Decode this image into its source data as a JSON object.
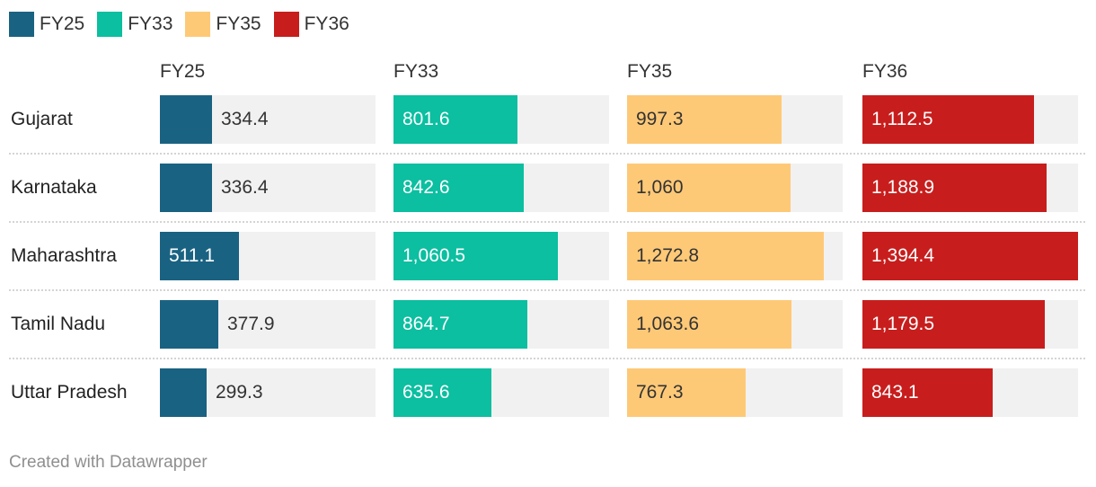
{
  "chart_data": {
    "type": "bar",
    "categories": [
      "Gujarat",
      "Karnataka",
      "Maharashtra",
      "Tamil Nadu",
      "Uttar Pradesh"
    ],
    "series": [
      {
        "name": "FY25",
        "color": "#1a6282",
        "values": [
          334.4,
          336.4,
          511.1,
          377.9,
          299.3
        ],
        "labels": [
          "334.4",
          "336.4",
          "511.1",
          "377.9",
          "299.3"
        ]
      },
      {
        "name": "FY33",
        "color": "#0bbfa0",
        "values": [
          801.6,
          842.6,
          1060.5,
          864.7,
          635.6
        ],
        "labels": [
          "801.6",
          "842.6",
          "1,060.5",
          "864.7",
          "635.6"
        ]
      },
      {
        "name": "FY35",
        "color": "#fec977",
        "values": [
          997.3,
          1060,
          1272.8,
          1063.6,
          767.3
        ],
        "labels": [
          "997.3",
          "1,060",
          "1,272.8",
          "1,063.6",
          "767.3"
        ]
      },
      {
        "name": "FY36",
        "color": "#c71e1d",
        "values": [
          1112.5,
          1188.9,
          1394.4,
          1179.5,
          843.1
        ],
        "labels": [
          "1,112.5",
          "1,188.9",
          "1,394.4",
          "1,179.5",
          "843.1"
        ]
      }
    ],
    "xlim": [
      0,
      1394.4
    ],
    "legend_position": "top-left",
    "grid": false
  },
  "footer": {
    "credit": "Created with Datawrapper"
  }
}
